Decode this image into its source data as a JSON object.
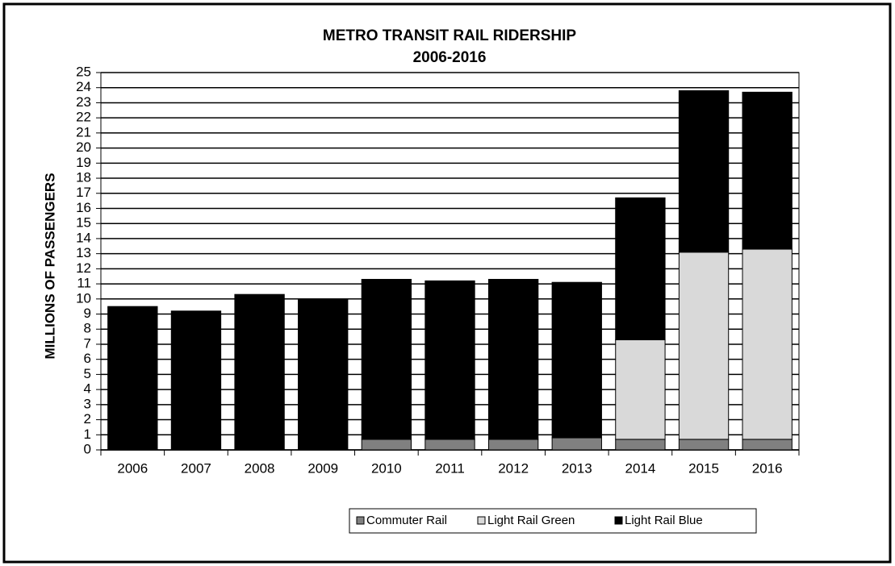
{
  "chart_data": {
    "type": "stacked_bar",
    "title": "METRO TRANSIT RAIL RIDERSHIP",
    "subtitle": "2006-2016",
    "y_label": "MILLIONS OF PASSENGERS",
    "categories": [
      "2006",
      "2007",
      "2008",
      "2009",
      "2010",
      "2011",
      "2012",
      "2013",
      "2014",
      "2015",
      "2016"
    ],
    "series": [
      {
        "name": "Commuter Rail",
        "color": "#808080",
        "values": [
          0,
          0,
          0,
          0,
          0.7,
          0.7,
          0.7,
          0.8,
          0.7,
          0.7,
          0.7
        ]
      },
      {
        "name": "Light Rail Green",
        "color": "#d9d9d9",
        "values": [
          0,
          0,
          0,
          0,
          0,
          0,
          0,
          0,
          6.6,
          12.4,
          12.6
        ]
      },
      {
        "name": "Light Rail Blue",
        "color": "#000000",
        "values": [
          9.5,
          9.2,
          10.3,
          10.0,
          10.6,
          10.5,
          10.6,
          10.3,
          9.4,
          10.7,
          10.4
        ]
      }
    ],
    "ylim": [
      0,
      25
    ],
    "yticks": [
      0,
      1,
      2,
      3,
      4,
      5,
      6,
      7,
      8,
      9,
      10,
      11,
      12,
      13,
      14,
      15,
      16,
      17,
      18,
      19,
      20,
      21,
      22,
      23,
      24,
      25
    ],
    "grid": true,
    "legend": "bottom"
  }
}
